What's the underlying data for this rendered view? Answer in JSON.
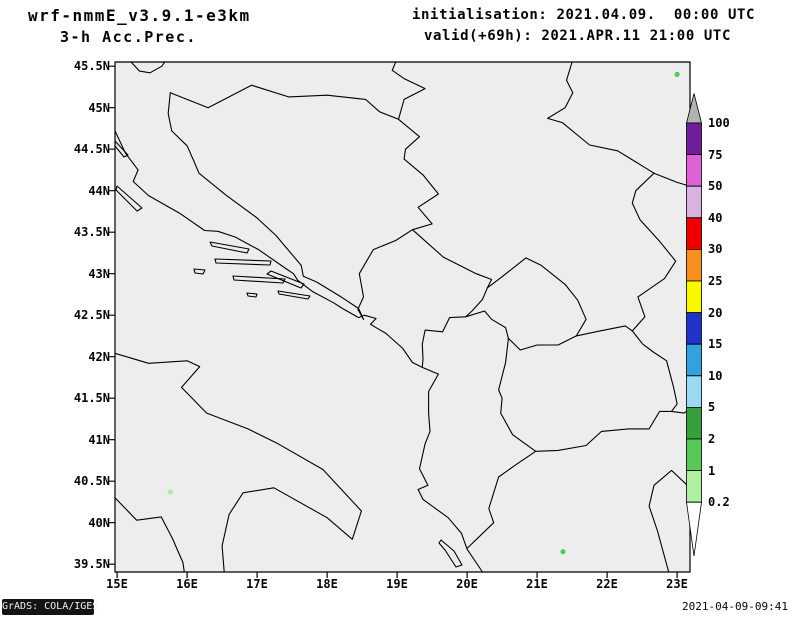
{
  "header": {
    "model_name": "wrf-nmmE_v3.9.1-e3km",
    "product": "3-h Acc.Prec.",
    "init": "initialisation: 2021.04.09.  00:00 UTC",
    "valid": "valid(+69h): 2021.APR.11 21:00 UTC"
  },
  "map": {
    "region": "Balkans / Adriatic",
    "background": "#ededed",
    "outline_color": "#000000",
    "lat_labels": [
      "45.5N",
      "45N",
      "44.5N",
      "44N",
      "43.5N",
      "43N",
      "42.5N",
      "42N",
      "41.5N",
      "41N",
      "40.5N",
      "40N",
      "39.5N"
    ],
    "lon_labels": [
      "15E",
      "16E",
      "17E",
      "18E",
      "19E",
      "20E",
      "21E",
      "22E",
      "23E"
    ],
    "precip_spots": [
      {
        "lon": 23.0,
        "lat": 45.4,
        "color": "#58c85a"
      },
      {
        "lon": 15.76,
        "lat": 40.37,
        "color": "#aef0a0"
      },
      {
        "lon": 21.37,
        "lat": 39.65,
        "color": "#58c85a"
      }
    ]
  },
  "colorbar": {
    "labels": [
      "100",
      "75",
      "50",
      "40",
      "30",
      "25",
      "20",
      "15",
      "10",
      "5",
      "2",
      "1",
      "0.2"
    ],
    "over_color": "#b3b3b3",
    "under_color": "#ffffff",
    "segment_colors": [
      "#6e1e9b",
      "#de62d6",
      "#d9b3e0",
      "#ee0000",
      "#f79020",
      "#f8f800",
      "#2233cc",
      "#33a1e0",
      "#9bd9f2",
      "#35a03c",
      "#58c85a",
      "#aef0a0"
    ]
  },
  "footer": {
    "left": "GrADS: COLA/IGES",
    "right": "2021-04-09-09:41"
  }
}
